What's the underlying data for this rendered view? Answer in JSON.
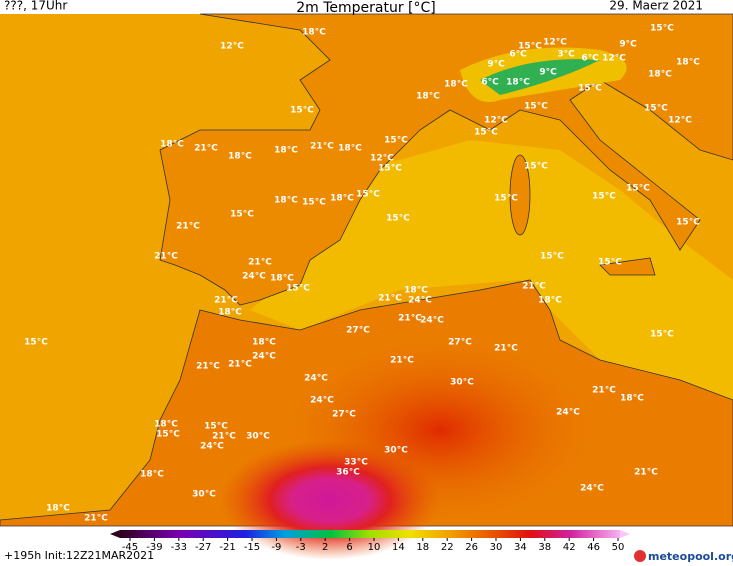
{
  "header": {
    "left": "???, 17Uhr",
    "title": "2m Temperatur [°C]",
    "date": "29. Maerz 2021"
  },
  "footer": {
    "run": "+195h Init:12Z21MAR2021",
    "logo": "meteopool.org"
  },
  "legend": {
    "ticks": [
      -45,
      -39,
      -33,
      -27,
      -21,
      -15,
      -9,
      -3,
      2,
      6,
      10,
      14,
      18,
      22,
      26,
      30,
      34,
      38,
      42,
      46,
      50
    ]
  },
  "labels": [
    "12°C",
    "18°C",
    "15°C",
    "12°C",
    "9°C",
    "15°C",
    "6°C",
    "3°C",
    "6°C",
    "12°C",
    "9°C",
    "9°C",
    "18°C",
    "18°C",
    "6°C",
    "18°C",
    "18°C",
    "18°C",
    "15°C",
    "15°C",
    "15°C",
    "15°C",
    "12°C",
    "12°C",
    "15°C",
    "18°C",
    "21°C",
    "18°C",
    "18°C",
    "21°C",
    "18°C",
    "15°C",
    "12°C",
    "15°C",
    "15°C",
    "15°C",
    "15°C",
    "15°C",
    "15°C",
    "18°C",
    "15°C",
    "18°C",
    "15°C",
    "15°C",
    "15°C",
    "21°C",
    "21°C",
    "21°C",
    "15°C",
    "15°C",
    "24°C",
    "18°C",
    "15°C",
    "18°C",
    "21°C",
    "24°C",
    "21°C",
    "18°C",
    "21°C",
    "18°C",
    "21°C",
    "24°C",
    "27°C",
    "15°C",
    "15°C",
    "18°C",
    "27°C",
    "21°C",
    "24°C",
    "21°C",
    "21°C",
    "21°C",
    "24°C",
    "30°C",
    "21°C",
    "18°C",
    "24°C",
    "27°C",
    "24°C",
    "18°C",
    "15°C",
    "15°C",
    "21°C",
    "30°C",
    "24°C",
    "30°C",
    "33°C",
    "36°C",
    "21°C",
    "18°C",
    "24°C",
    "30°C",
    "18°C",
    "21°C"
  ]
}
